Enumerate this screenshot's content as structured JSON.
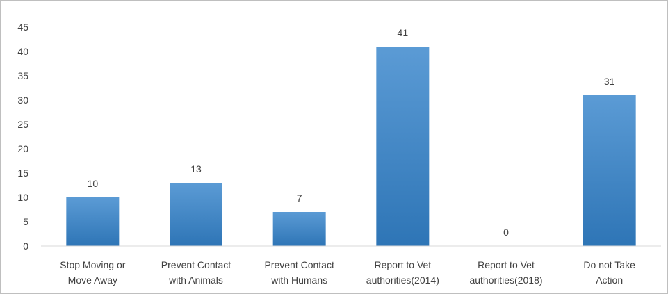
{
  "chart_data": {
    "type": "bar",
    "title": "",
    "xlabel": "",
    "ylabel": "",
    "categories": [
      [
        "Stop Moving or",
        "Move Away"
      ],
      [
        "Prevent Contact",
        "with Animals"
      ],
      [
        "Prevent Contact",
        "with Humans"
      ],
      [
        "Report to Vet",
        "authorities(2014)"
      ],
      [
        "Report to Vet",
        "authorities(2018)"
      ],
      [
        "Do not Take",
        "Action"
      ]
    ],
    "values": [
      10,
      13,
      7,
      41,
      0,
      31
    ],
    "data_labels": [
      "10",
      "13",
      "7",
      "41",
      "0",
      "31"
    ],
    "ylim": [
      0,
      45
    ],
    "yticks": [
      0,
      5,
      10,
      15,
      20,
      25,
      30,
      35,
      40,
      45
    ],
    "grid": false,
    "legend": "none",
    "colors": {
      "bar_top": "#5b9bd5",
      "bar_bottom": "#2e75b6",
      "axis": "#d9d9d9",
      "text": "#404040"
    }
  }
}
